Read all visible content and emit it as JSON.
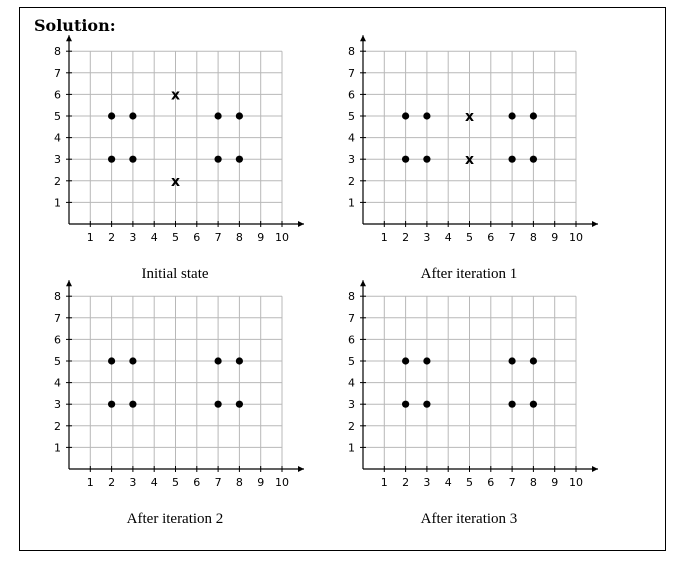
{
  "heading": "Solution:",
  "chart_data": [
    {
      "type": "scatter",
      "caption": "Initial state",
      "x_ticks": [
        1,
        2,
        3,
        4,
        5,
        6,
        7,
        8,
        9,
        10
      ],
      "y_ticks": [
        1,
        2,
        3,
        4,
        5,
        6,
        7,
        8
      ],
      "xlim": [
        0,
        10
      ],
      "ylim": [
        0,
        8
      ],
      "grid": true,
      "points": [
        [
          2,
          5
        ],
        [
          3,
          5
        ],
        [
          2,
          3
        ],
        [
          3,
          3
        ],
        [
          7,
          5
        ],
        [
          8,
          5
        ],
        [
          7,
          3
        ],
        [
          8,
          3
        ]
      ],
      "centroids": [
        [
          5,
          6
        ],
        [
          5,
          2
        ]
      ]
    },
    {
      "type": "scatter",
      "caption": "After iteration 1",
      "x_ticks": [
        1,
        2,
        3,
        4,
        5,
        6,
        7,
        8,
        9,
        10
      ],
      "y_ticks": [
        1,
        2,
        3,
        4,
        5,
        6,
        7,
        8
      ],
      "xlim": [
        0,
        10
      ],
      "ylim": [
        0,
        8
      ],
      "grid": true,
      "points": [
        [
          2,
          5
        ],
        [
          3,
          5
        ],
        [
          2,
          3
        ],
        [
          3,
          3
        ],
        [
          7,
          5
        ],
        [
          8,
          5
        ],
        [
          7,
          3
        ],
        [
          8,
          3
        ]
      ],
      "centroids": [
        [
          5,
          5
        ],
        [
          5,
          3
        ]
      ]
    },
    {
      "type": "scatter",
      "caption": "After iteration 2",
      "x_ticks": [
        1,
        2,
        3,
        4,
        5,
        6,
        7,
        8,
        9,
        10
      ],
      "y_ticks": [
        1,
        2,
        3,
        4,
        5,
        6,
        7,
        8
      ],
      "xlim": [
        0,
        10
      ],
      "ylim": [
        0,
        8
      ],
      "grid": true,
      "points": [
        [
          2,
          5
        ],
        [
          3,
          5
        ],
        [
          2,
          3
        ],
        [
          3,
          3
        ],
        [
          7,
          5
        ],
        [
          8,
          5
        ],
        [
          7,
          3
        ],
        [
          8,
          3
        ]
      ],
      "centroids": []
    },
    {
      "type": "scatter",
      "caption": "After iteration 3",
      "x_ticks": [
        1,
        2,
        3,
        4,
        5,
        6,
        7,
        8,
        9,
        10
      ],
      "y_ticks": [
        1,
        2,
        3,
        4,
        5,
        6,
        7,
        8
      ],
      "xlim": [
        0,
        10
      ],
      "ylim": [
        0,
        8
      ],
      "grid": true,
      "points": [
        [
          2,
          5
        ],
        [
          3,
          5
        ],
        [
          2,
          3
        ],
        [
          3,
          3
        ],
        [
          7,
          5
        ],
        [
          8,
          5
        ],
        [
          7,
          3
        ],
        [
          8,
          3
        ]
      ],
      "centroids": []
    }
  ],
  "centroid_marker": "x"
}
